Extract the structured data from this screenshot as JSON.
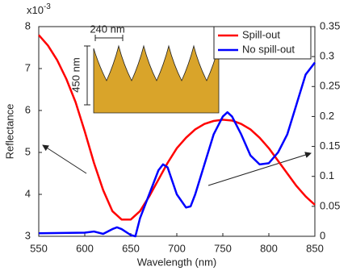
{
  "chart_data": {
    "type": "line",
    "x_label": "Wavelength (nm)",
    "y_label": "Reflectance",
    "y_multiplier": "x10",
    "y_multiplier_exp": "-3",
    "annotations": [
      "240 nm",
      "450 nm"
    ],
    "xlim": [
      550,
      850
    ],
    "xticks": [
      550,
      600,
      650,
      700,
      750,
      800,
      850
    ],
    "ylim": [
      3,
      8
    ],
    "yticks": [
      3,
      4,
      5,
      6,
      7,
      8
    ],
    "y2lim": [
      0,
      0.35
    ],
    "y2ticks": [
      0,
      0.05,
      0.1,
      0.15,
      0.2,
      0.25,
      0.3,
      0.35
    ],
    "legend": "upper right",
    "series": [
      {
        "name": "Spill-out",
        "color": "#ff0000",
        "x": [
          550,
          560,
          570,
          580,
          590,
          600,
          610,
          620,
          630,
          640,
          650,
          660,
          670,
          680,
          690,
          700,
          710,
          720,
          730,
          740,
          750,
          760,
          770,
          780,
          790,
          800,
          810,
          820,
          830,
          840,
          850
        ],
        "values": [
          7.8,
          7.55,
          7.2,
          6.75,
          6.2,
          5.5,
          4.75,
          4.1,
          3.6,
          3.4,
          3.4,
          3.6,
          3.95,
          4.35,
          4.75,
          5.1,
          5.35,
          5.55,
          5.68,
          5.75,
          5.78,
          5.76,
          5.68,
          5.55,
          5.35,
          5.1,
          4.8,
          4.5,
          4.2,
          3.95,
          3.75
        ]
      },
      {
        "name": "No spill-out",
        "color": "#0000ff",
        "axis": "y2",
        "x": [
          550,
          600,
          610,
          620,
          630,
          635,
          640,
          650,
          655,
          660,
          670,
          680,
          685,
          690,
          700,
          710,
          715,
          720,
          730,
          740,
          750,
          755,
          760,
          770,
          780,
          790,
          800,
          810,
          820,
          830,
          840,
          850
        ],
        "values": [
          0.005,
          0.006,
          0.008,
          0.004,
          0.012,
          0.015,
          0.012,
          0.002,
          0.0,
          0.03,
          0.07,
          0.11,
          0.12,
          0.115,
          0.07,
          0.048,
          0.05,
          0.07,
          0.12,
          0.17,
          0.2,
          0.207,
          0.2,
          0.17,
          0.135,
          0.12,
          0.122,
          0.14,
          0.17,
          0.22,
          0.27,
          0.29
        ]
      }
    ]
  }
}
